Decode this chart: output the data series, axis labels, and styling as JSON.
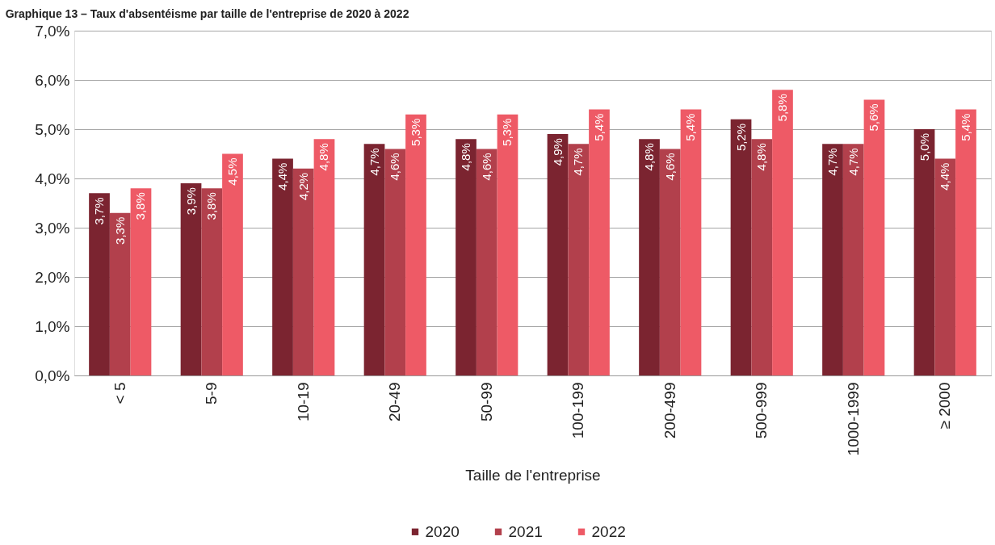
{
  "chart_data": {
    "type": "bar",
    "title": "Graphique 13 – Taux d'absentéisme par taille de l'entreprise de 2020 à 2022",
    "xlabel": "Taille de l'entreprise",
    "categories": [
      "< 5",
      "5-9",
      "10-19",
      "20-49",
      "50-99",
      "100-199",
      "200-499",
      "500-999",
      "1000-1999",
      "≥ 2000"
    ],
    "series": [
      {
        "name": "2020",
        "color": "#7b2430",
        "values": [
          3.7,
          3.9,
          4.4,
          4.7,
          4.8,
          4.9,
          4.8,
          5.2,
          4.7,
          5.0
        ],
        "value_labels": [
          "3,7%",
          "3,9%",
          "4,4%",
          "4,7%",
          "4,8%",
          "4,9%",
          "4,8%",
          "5,2%",
          "4,7%",
          "5,0%"
        ]
      },
      {
        "name": "2021",
        "color": "#b2404c",
        "values": [
          3.3,
          3.8,
          4.2,
          4.6,
          4.6,
          4.7,
          4.6,
          4.8,
          4.7,
          4.4
        ],
        "value_labels": [
          "3,3%",
          "3,8%",
          "4,2%",
          "4,6%",
          "4,6%",
          "4,7%",
          "4,6%",
          "4,8%",
          "4,7%",
          "4,4%"
        ]
      },
      {
        "name": "2022",
        "color": "#ee5a66",
        "values": [
          3.8,
          4.5,
          4.8,
          5.3,
          5.3,
          5.4,
          5.4,
          5.8,
          5.6,
          5.4
        ],
        "value_labels": [
          "3,8%",
          "4,5%",
          "4,8%",
          "5,3%",
          "5,3%",
          "5,4%",
          "5,4%",
          "5,8%",
          "5,6%",
          "5,4%"
        ]
      }
    ],
    "ylim": [
      0,
      7
    ],
    "yticks": [
      {
        "value": 0,
        "label": "0,0%"
      },
      {
        "value": 1,
        "label": "1,0%"
      },
      {
        "value": 2,
        "label": "2,0%"
      },
      {
        "value": 3,
        "label": "3,0%"
      },
      {
        "value": 4,
        "label": "4,0%"
      },
      {
        "value": 5,
        "label": "5,0%"
      },
      {
        "value": 6,
        "label": "6,0%"
      },
      {
        "value": 7,
        "label": "7,0%"
      }
    ],
    "grid": "y",
    "legend": "bottom"
  }
}
